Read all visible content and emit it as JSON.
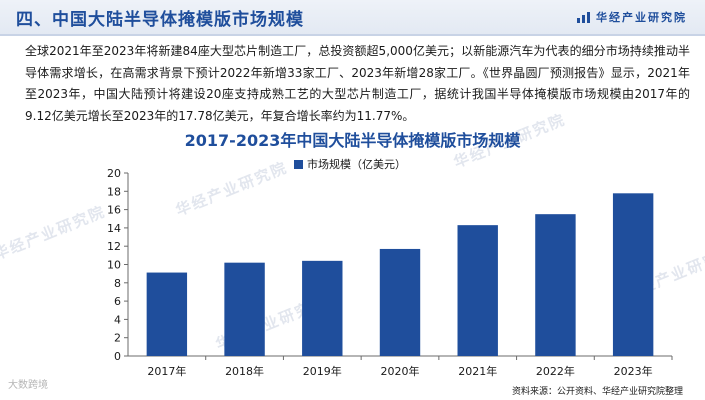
{
  "header": {
    "section_title": "四、中国大陆半导体掩模版市场规模",
    "brand": "华经产业研究院",
    "accent_color": "#1f4e9c"
  },
  "paragraph": "全球2021年至2023年将新建84座大型芯片制造工厂，总投资额超5,000亿美元；以新能源汽车为代表的细分市场持续推动半导体需求增长，在高需求背景下预计2022年新增33家工厂、2023年新增28家工厂。《世界晶圆厂预测报告》显示，2021年至2023年，中国大陆预计将建设20座支持成熟工艺的大型芯片制造工厂，据统计我国半导体掩模版市场规模由2017年的9.12亿美元增长至2023年的17.78亿美元，年复合增长率约为11.77%。",
  "watermark_text": "华经产业研究院",
  "footer": {
    "source": "资料来源：公开资料、华经产业研究院整理",
    "corner_logo": "大数跨境"
  },
  "chart_data": {
    "type": "bar",
    "title": "2017-2023年中国大陆半导体掩模版市场规模",
    "categories": [
      "2017年",
      "2018年",
      "2019年",
      "2020年",
      "2021年",
      "2022年",
      "2023年"
    ],
    "series": [
      {
        "name": "市场规模（亿美元）",
        "color": "#1f4e9c",
        "values": [
          9.12,
          10.2,
          10.4,
          11.7,
          14.3,
          15.5,
          17.78
        ]
      }
    ],
    "ylim": [
      0,
      20
    ],
    "yticks": [
      0,
      2,
      4,
      6,
      8,
      10,
      12,
      14,
      16,
      18,
      20
    ],
    "grid": false,
    "legend_position": "top-center"
  }
}
